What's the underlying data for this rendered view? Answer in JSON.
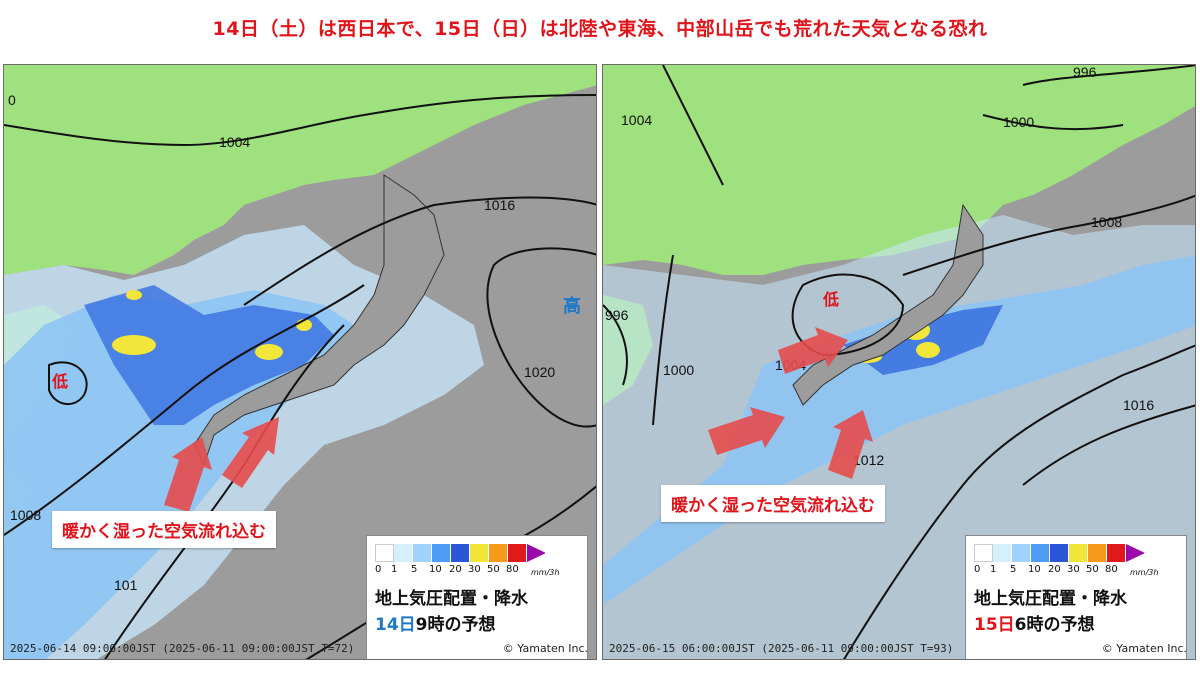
{
  "headline": "14日（土）は西日本で、15日（日）は北陸や東海、中部山岳でも荒れた天気となる恐れ",
  "colors": {
    "headline": "#e0141b",
    "ocean": "#9c9c9c",
    "land": "#9fe07f",
    "rain_light": "#c9e8ff",
    "rain_mid": "#8bc3f5",
    "rain_blue": "#3d74e0",
    "rain_yellow": "#f2e63a",
    "rain_orange": "#f59a1a",
    "rain_red": "#e51a1a",
    "arrow": "#e54b4b"
  },
  "legend": {
    "ticks": [
      "0",
      "1",
      "5",
      "10",
      "20",
      "30",
      "50",
      "80"
    ],
    "unit": "mm/3h",
    "colors": [
      "#ffffff",
      "#d6efff",
      "#9fd2ff",
      "#4d9cf5",
      "#2b56d8",
      "#f0e63a",
      "#f59a1a",
      "#e01a1a",
      "#9a0aa8"
    ]
  },
  "panels": [
    {
      "footer": "2025-06-14 09:00:00JST (2025-06-11 09:00:00JST T=72)",
      "credit": "© Yamaten Inc.",
      "callout": "暖かく湿った空気流れ込む",
      "pressure_high": "高",
      "pressure_low": "低",
      "isobars": [
        "0",
        "1004",
        "1016",
        "1020",
        "1008",
        "101"
      ],
      "legend_title": "地上気圧配置・降水",
      "date_part": "14日",
      "time_part": "9時の予想"
    },
    {
      "footer": "2025-06-15 06:00:00JST (2025-06-11 09:00:00JST T=93)",
      "credit": "© Yamaten Inc.",
      "callout": "暖かく湿った空気流れ込む",
      "pressure_low": "低",
      "isobars": [
        "1004",
        "1000",
        "996",
        "996",
        "1000",
        "1008",
        "1004",
        "1012",
        "1016"
      ],
      "legend_title": "地上気圧配置・降水",
      "date_part": "15日",
      "time_part": "6時の予想"
    }
  ]
}
